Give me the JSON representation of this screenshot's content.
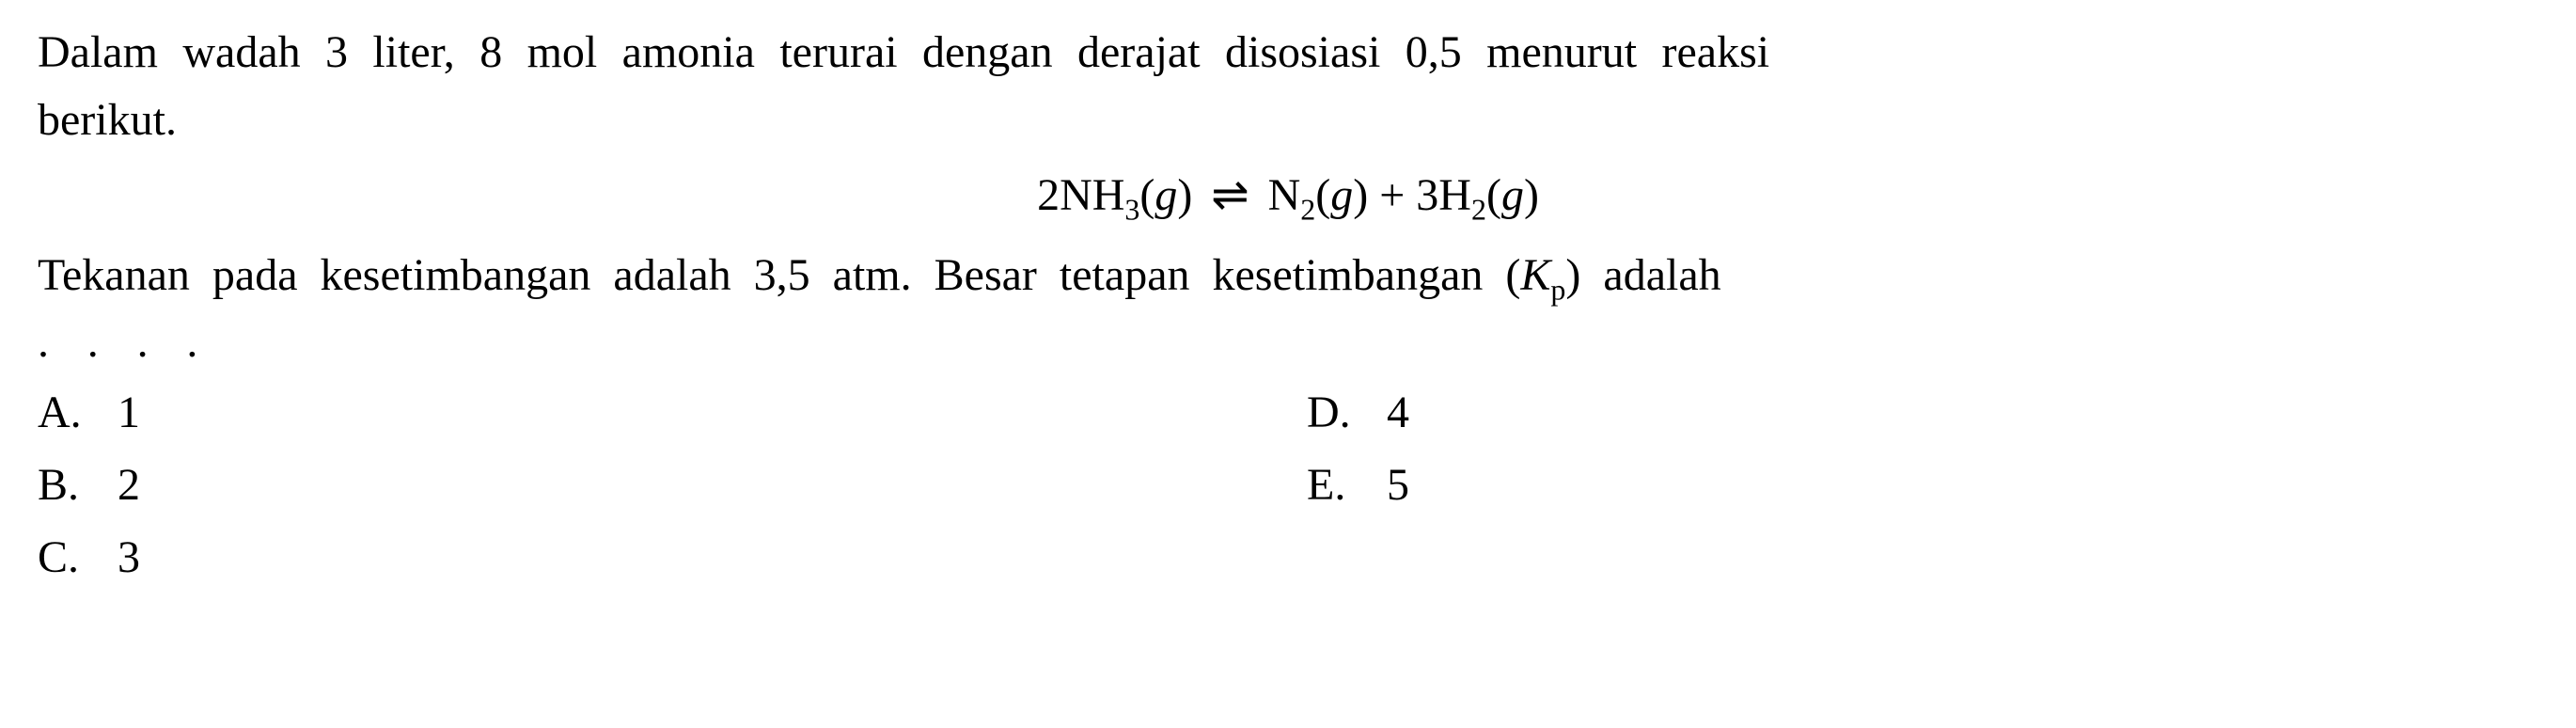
{
  "question": {
    "line1": "Dalam wadah 3 liter, 8 mol amonia terurai dengan derajat disosiasi 0,5 menurut reaksi",
    "line2": "berikut.",
    "part2_prefix": "Tekanan pada kesetimbangan adalah 3,5 atm. Besar tetapan kesetimbangan (",
    "part2_kp_k": "K",
    "part2_kp_p": "p",
    "part2_suffix": ") adalah",
    "dots": ". . . ."
  },
  "equation": {
    "nh3_coeff": "2NH",
    "nh3_sub": "3",
    "nh3_state": "(",
    "nh3_g": "g",
    "nh3_close": ")",
    "arrow": "⇌",
    "n2": "N",
    "n2_sub": "2",
    "n2_state": "(",
    "n2_g": "g",
    "n2_close": ")",
    "plus": " + ",
    "h2_coeff": "3H",
    "h2_sub": "2",
    "h2_state": "(",
    "h2_g": "g",
    "h2_close": ")"
  },
  "options": {
    "A": {
      "letter": "A.",
      "value": "1"
    },
    "B": {
      "letter": "B.",
      "value": "2"
    },
    "C": {
      "letter": "C.",
      "value": "3"
    },
    "D": {
      "letter": "D.",
      "value": "4"
    },
    "E": {
      "letter": "E.",
      "value": "5"
    }
  },
  "colors": {
    "background": "#ffffff",
    "text": "#000000"
  },
  "typography": {
    "body_fontsize": 48,
    "sub_fontsize": 32,
    "font_family": "Georgia, Times New Roman, serif"
  }
}
